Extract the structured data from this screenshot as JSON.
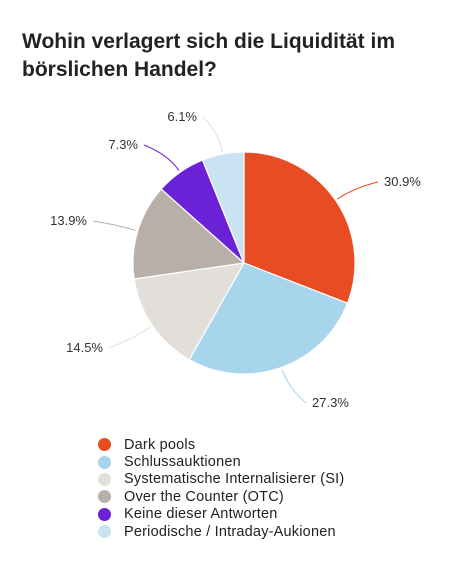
{
  "chart_data": {
    "type": "pie",
    "title": "Wohin verlagert sich die Liquidität im börslichen Handel?",
    "value_suffix": "%",
    "slices": [
      {
        "label": "Dark pools",
        "value": 30.9,
        "display": "30.9%",
        "color": "#e84c22"
      },
      {
        "label": "Schlussauktionen",
        "value": 27.3,
        "display": "27.3%",
        "color": "#a7d5ec"
      },
      {
        "label": "Systematische Internalisierer (SI)",
        "value": 14.5,
        "display": "14.5%",
        "color": "#e2deda"
      },
      {
        "label": "Over the Counter (OTC)",
        "value": 13.9,
        "display": "13.9%",
        "color": "#b8b0a8"
      },
      {
        "label": "Keine dieser Antworten",
        "value": 7.3,
        "display": "7.3%",
        "color": "#6b21d6"
      },
      {
        "label": "Periodische / Intraday-Aukionen",
        "value": 6.1,
        "display": "6.1%",
        "color": "#c9e3f3"
      }
    ],
    "legend_position": "bottom"
  }
}
